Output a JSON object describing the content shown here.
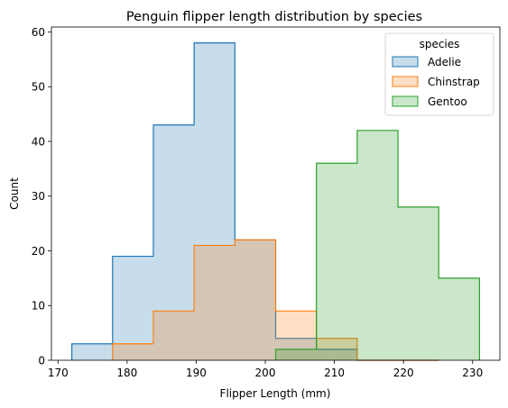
{
  "chart_data": {
    "type": "histogram",
    "title": "Penguin flipper length distribution by species",
    "xlabel": "Flipper Length (mm)",
    "ylabel": "Count",
    "xlim": [
      169.05,
      233.95
    ],
    "ylim": [
      0,
      60.9
    ],
    "xticks": [
      170,
      180,
      190,
      200,
      210,
      220,
      230
    ],
    "yticks": [
      0,
      10,
      20,
      30,
      40,
      50,
      60
    ],
    "bin_edges": [
      172,
      177.9,
      183.8,
      189.7,
      195.6,
      201.5,
      207.4,
      213.3,
      219.2,
      225.1,
      231
    ],
    "legend": {
      "title": "species",
      "position": "upper right"
    },
    "series": [
      {
        "name": "Adelie",
        "color": "#1f77b4",
        "fill": "#c6dbef",
        "values": [
          3,
          19,
          43,
          58,
          22,
          4,
          2,
          0,
          0,
          0
        ]
      },
      {
        "name": "Chinstrap",
        "color": "#ff7f0e",
        "fill": "#ffdcbc",
        "values": [
          0,
          3,
          9,
          21,
          22,
          9,
          4,
          0,
          0,
          0
        ]
      },
      {
        "name": "Gentoo",
        "color": "#2ca02c",
        "fill": "#c9e7c9",
        "values": [
          0,
          0,
          0,
          0,
          0,
          2,
          36,
          42,
          28,
          15
        ]
      }
    ]
  }
}
